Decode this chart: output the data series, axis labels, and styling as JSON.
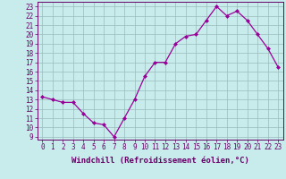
{
  "x": [
    0,
    1,
    2,
    3,
    4,
    5,
    6,
    7,
    8,
    9,
    10,
    11,
    12,
    13,
    14,
    15,
    16,
    17,
    18,
    19,
    20,
    21,
    22,
    23
  ],
  "y": [
    13.3,
    13.0,
    12.7,
    12.7,
    11.5,
    10.5,
    10.3,
    9.0,
    11.0,
    13.0,
    15.5,
    17.0,
    17.0,
    19.0,
    19.8,
    20.0,
    21.5,
    23.0,
    22.0,
    22.5,
    21.5,
    20.0,
    18.5,
    16.5
  ],
  "line_color": "#990099",
  "marker": "D",
  "markersize": 2.0,
  "linewidth": 0.9,
  "background_color": "#c8ecec",
  "grid_color": "#9ababa",
  "xlabel": "Windchill (Refroidissement éolien,°C)",
  "xlabel_fontsize": 6.5,
  "yticks": [
    9,
    10,
    11,
    12,
    13,
    14,
    15,
    16,
    17,
    18,
    19,
    20,
    21,
    22,
    23
  ],
  "xticks": [
    0,
    1,
    2,
    3,
    4,
    5,
    6,
    7,
    8,
    9,
    10,
    11,
    12,
    13,
    14,
    15,
    16,
    17,
    18,
    19,
    20,
    21,
    22,
    23
  ],
  "xlim": [
    -0.5,
    23.5
  ],
  "ylim": [
    8.7,
    23.5
  ],
  "tick_fontsize": 5.5,
  "tick_color": "#660066",
  "spine_color": "#660066",
  "xlabel_color": "#660066"
}
